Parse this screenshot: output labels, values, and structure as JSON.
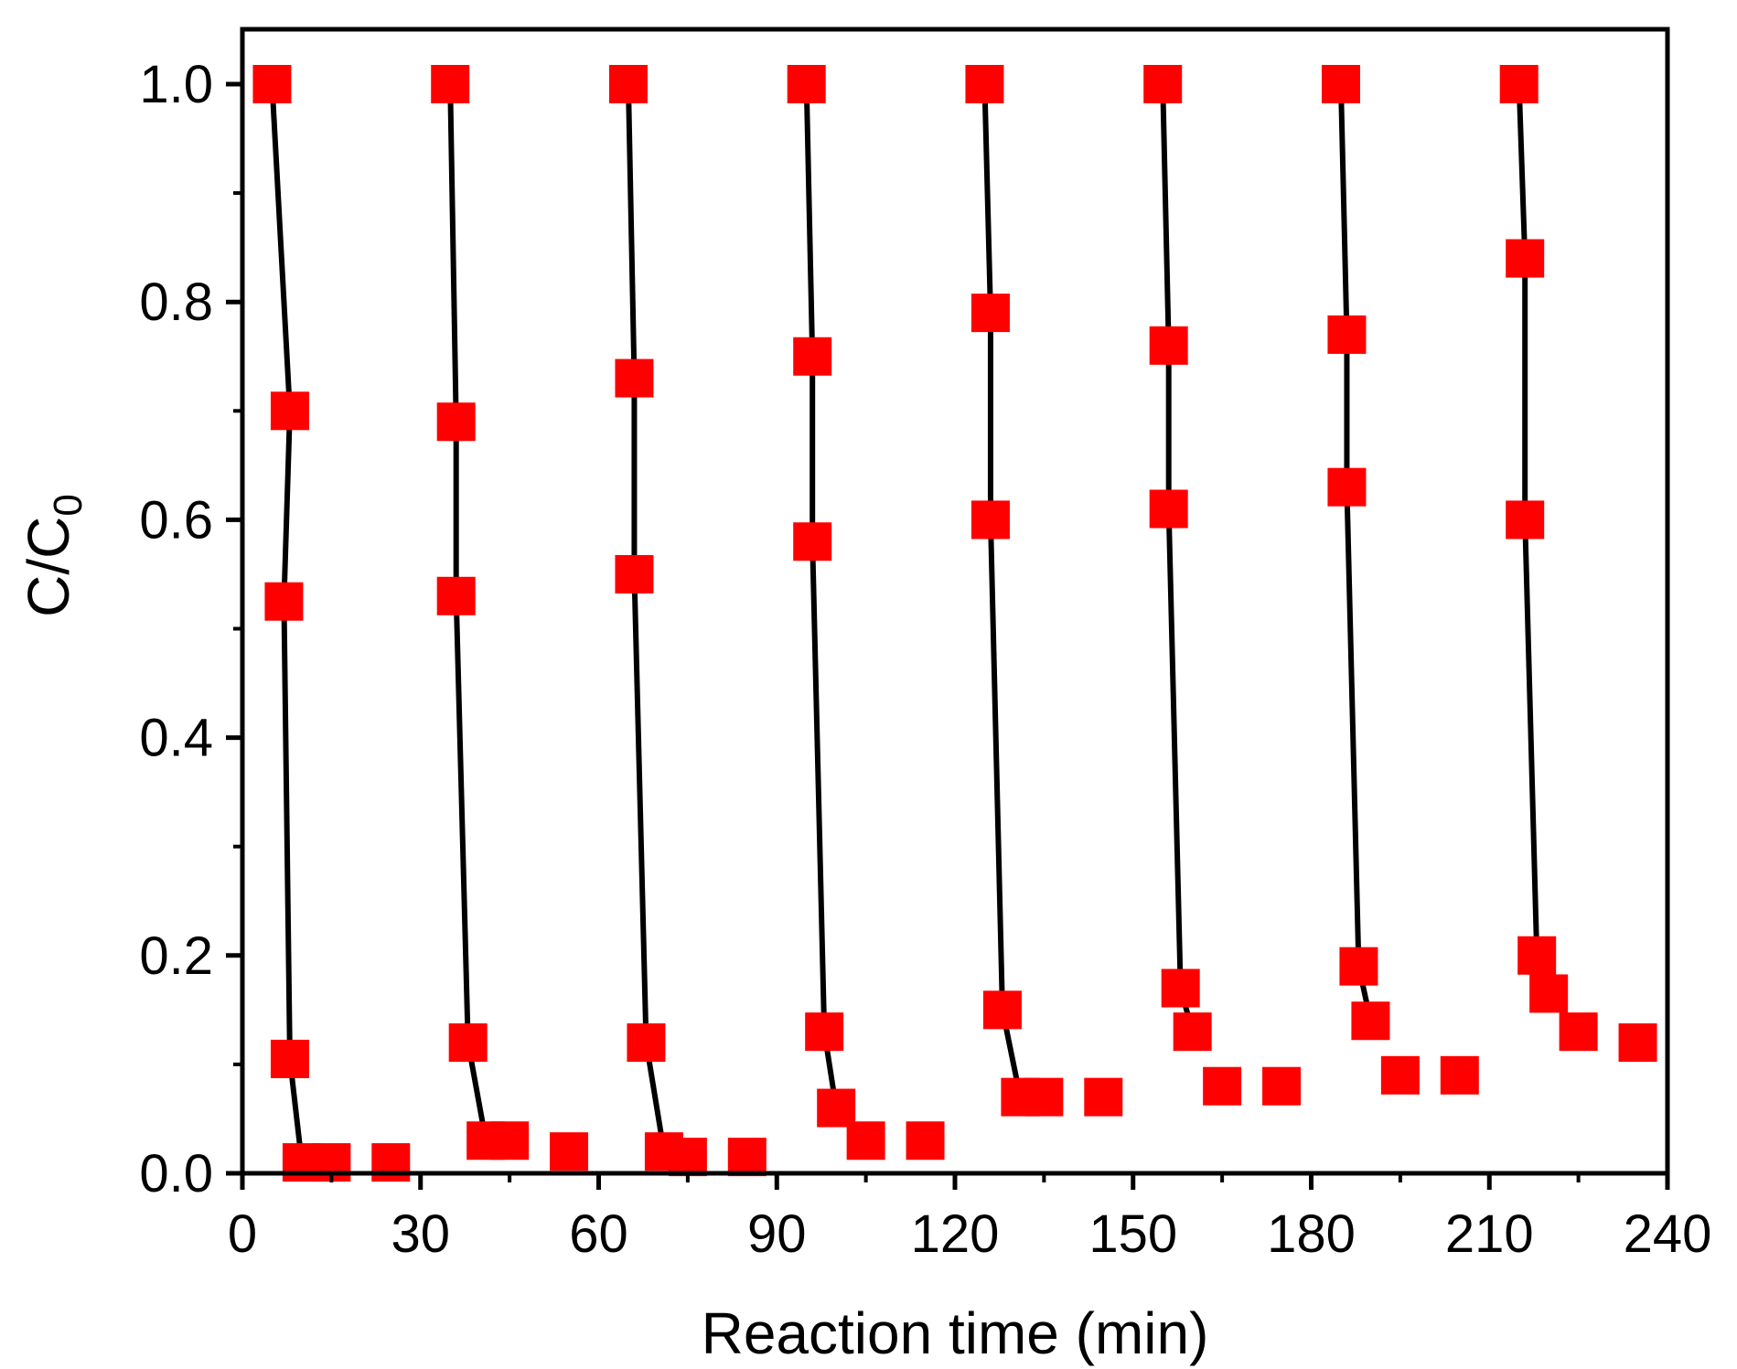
{
  "chart_data": {
    "type": "scatter",
    "xlabel": "Reaction time (min)",
    "ylabel": {
      "main": "C/C",
      "subscript": "0"
    },
    "xlim": [
      0,
      240
    ],
    "ylim": [
      0,
      1.0
    ],
    "x_ticks": [
      0,
      30,
      60,
      90,
      120,
      150,
      180,
      210,
      240
    ],
    "x_tick_labels": [
      "0",
      "30",
      "60",
      "90",
      "120",
      "150",
      "180",
      "210",
      "240"
    ],
    "y_ticks": [
      0.0,
      0.2,
      0.4,
      0.6,
      0.8,
      1.0
    ],
    "y_tick_labels": [
      "0.0",
      "0.2",
      "0.4",
      "0.6",
      "0.8",
      "1.0"
    ],
    "marker": "square",
    "marker_color": "#ff0000",
    "line_color": "#000000",
    "grid": false,
    "legend": "none",
    "cycles": [
      {
        "x": [
          5,
          8,
          7,
          8,
          10,
          15,
          25
        ],
        "y": [
          1.0,
          0.7,
          0.525,
          0.105,
          0.01,
          0.01,
          0.01
        ]
      },
      {
        "x": [
          35,
          36,
          36,
          38,
          41,
          45,
          55
        ],
        "y": [
          1.0,
          0.69,
          0.53,
          0.12,
          0.03,
          0.03,
          0.02
        ]
      },
      {
        "x": [
          65,
          66,
          66,
          68,
          71,
          75,
          85
        ],
        "y": [
          1.0,
          0.73,
          0.55,
          0.12,
          0.02,
          0.015,
          0.015
        ]
      },
      {
        "x": [
          95,
          96,
          96,
          98,
          100,
          105,
          115
        ],
        "y": [
          1.0,
          0.75,
          0.58,
          0.13,
          0.06,
          0.03,
          0.03
        ]
      },
      {
        "x": [
          125,
          126,
          126,
          128,
          131,
          135,
          145
        ],
        "y": [
          1.0,
          0.79,
          0.6,
          0.15,
          0.07,
          0.07,
          0.07
        ]
      },
      {
        "x": [
          155,
          156,
          156,
          158,
          160,
          165,
          175
        ],
        "y": [
          1.0,
          0.76,
          0.61,
          0.17,
          0.13,
          0.08,
          0.08
        ]
      },
      {
        "x": [
          185,
          186,
          186,
          188,
          190,
          195,
          205
        ],
        "y": [
          1.0,
          0.77,
          0.63,
          0.19,
          0.14,
          0.09,
          0.09
        ]
      },
      {
        "x": [
          215,
          216,
          216,
          218,
          220,
          225,
          235
        ],
        "y": [
          1.0,
          0.84,
          0.6,
          0.2,
          0.165,
          0.13,
          0.12
        ]
      }
    ]
  }
}
